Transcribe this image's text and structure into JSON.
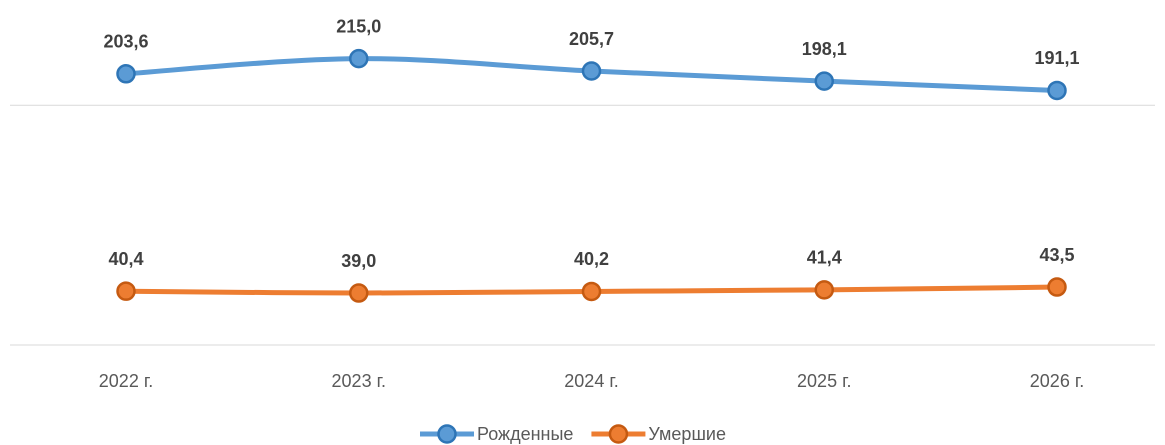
{
  "chart_data": {
    "type": "line",
    "categories": [
      "2022 г.",
      "2023 г.",
      "2024 г.",
      "2025 г.",
      "2026 г."
    ],
    "series": [
      {
        "name": "Рожденные",
        "color": "#5b9bd5",
        "values": [
          203.6,
          215.0,
          205.7,
          198.1,
          191.1
        ],
        "value_labels": [
          "203,6",
          "215,0",
          "205,7",
          "198,1",
          "191,1"
        ]
      },
      {
        "name": "Умершие",
        "color": "#ed7d31",
        "values": [
          40.4,
          39.0,
          40.2,
          41.4,
          43.5
        ],
        "value_labels": [
          "40,4",
          "39,0",
          "40,2",
          "41,4",
          "43,5"
        ]
      }
    ],
    "ylim": [
      0,
      250
    ],
    "yticks": [
      0,
      180
    ],
    "grid": true,
    "legend": "bottom"
  }
}
